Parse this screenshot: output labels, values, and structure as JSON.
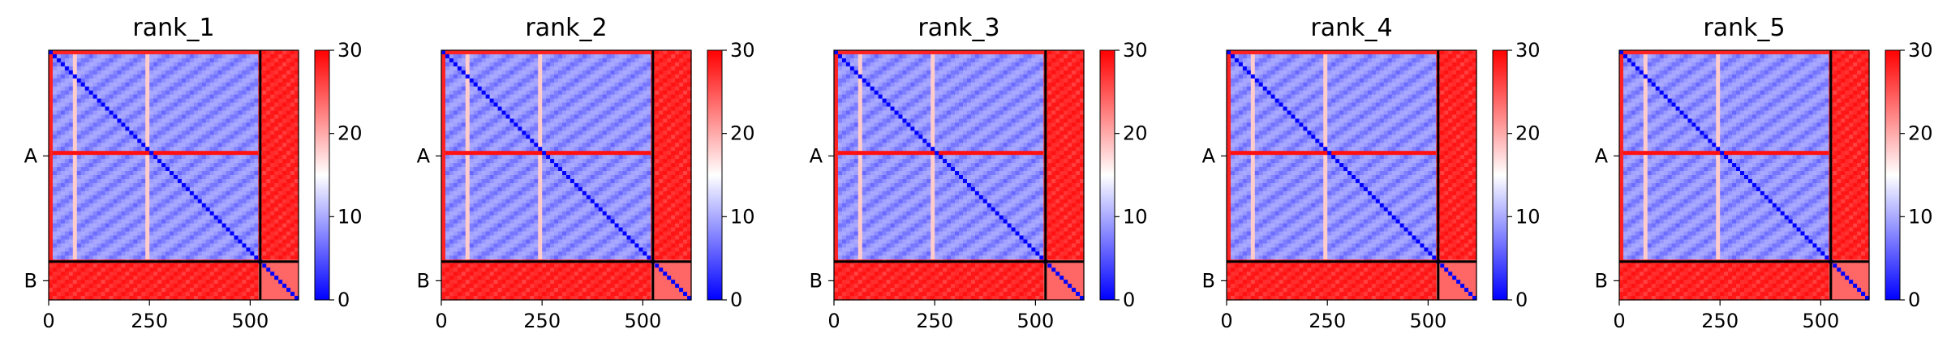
{
  "chart_data": [
    {
      "type": "heatmap",
      "title": "rank_1",
      "chains": [
        "A",
        "B"
      ],
      "chain_boundary": 525,
      "length": 620,
      "xticks": [
        0,
        250,
        500
      ],
      "colorbar": {
        "min": 0,
        "max": 30,
        "ticks": [
          0,
          10,
          20,
          30
        ],
        "colors": [
          "#0000ff",
          "#ffffff",
          "#ff0000"
        ]
      }
    },
    {
      "type": "heatmap",
      "title": "rank_2",
      "chains": [
        "A",
        "B"
      ],
      "chain_boundary": 525,
      "length": 620,
      "xticks": [
        0,
        250,
        500
      ],
      "colorbar": {
        "min": 0,
        "max": 30,
        "ticks": [
          0,
          10,
          20,
          30
        ],
        "colors": [
          "#0000ff",
          "#ffffff",
          "#ff0000"
        ]
      }
    },
    {
      "type": "heatmap",
      "title": "rank_3",
      "chains": [
        "A",
        "B"
      ],
      "chain_boundary": 525,
      "length": 620,
      "xticks": [
        0,
        250,
        500
      ],
      "colorbar": {
        "min": 0,
        "max": 30,
        "ticks": [
          0,
          10,
          20,
          30
        ],
        "colors": [
          "#0000ff",
          "#ffffff",
          "#ff0000"
        ]
      }
    },
    {
      "type": "heatmap",
      "title": "rank_4",
      "chains": [
        "A",
        "B"
      ],
      "chain_boundary": 525,
      "length": 620,
      "xticks": [
        0,
        250,
        500
      ],
      "colorbar": {
        "min": 0,
        "max": 30,
        "ticks": [
          0,
          10,
          20,
          30
        ],
        "colors": [
          "#0000ff",
          "#ffffff",
          "#ff0000"
        ]
      }
    },
    {
      "type": "heatmap",
      "title": "rank_5",
      "chains": [
        "A",
        "B"
      ],
      "chain_boundary": 525,
      "length": 620,
      "xticks": [
        0,
        250,
        500
      ],
      "colorbar": {
        "min": 0,
        "max": 30,
        "ticks": [
          0,
          10,
          20,
          30
        ],
        "colors": [
          "#0000ff",
          "#ffffff",
          "#ff0000"
        ]
      }
    }
  ]
}
